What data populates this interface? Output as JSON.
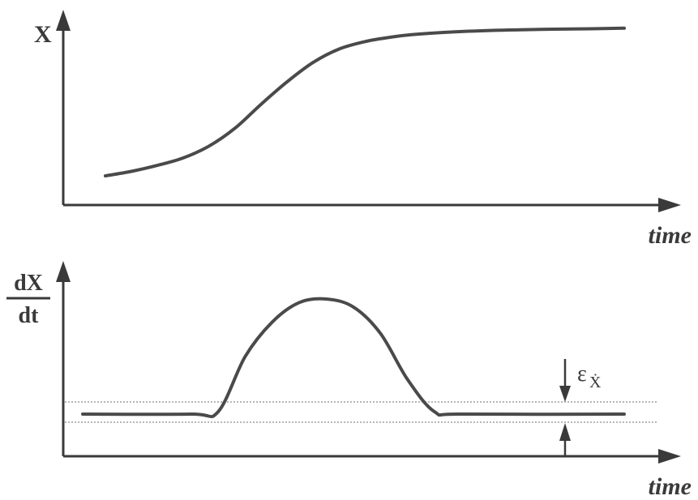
{
  "chart_data": [
    {
      "type": "line",
      "title": "",
      "ylabel": "X",
      "xlabel": "time",
      "series": [
        {
          "values": [
            [
              0.0,
              0.0
            ],
            [
              0.05,
              0.03
            ],
            [
              0.1,
              0.07
            ],
            [
              0.15,
              0.12
            ],
            [
              0.2,
              0.2
            ],
            [
              0.25,
              0.32
            ],
            [
              0.3,
              0.48
            ],
            [
              0.35,
              0.63
            ],
            [
              0.4,
              0.76
            ],
            [
              0.45,
              0.85
            ],
            [
              0.5,
              0.9
            ],
            [
              0.55,
              0.93
            ],
            [
              0.6,
              0.95
            ],
            [
              0.7,
              0.97
            ],
            [
              0.8,
              0.98
            ],
            [
              0.9,
              0.985
            ],
            [
              1.0,
              0.99
            ]
          ]
        }
      ]
    },
    {
      "type": "line",
      "title": "",
      "ylabel": {
        "numerator": "dX",
        "denominator": "dt"
      },
      "xlabel": "time",
      "series": [
        {
          "values": [
            [
              0.0,
              0.0
            ],
            [
              0.2,
              0.0
            ],
            [
              0.25,
              0.02
            ],
            [
              0.3,
              0.5
            ],
            [
              0.35,
              0.8
            ],
            [
              0.4,
              0.97
            ],
            [
              0.45,
              1.0
            ],
            [
              0.5,
              0.93
            ],
            [
              0.55,
              0.7
            ],
            [
              0.6,
              0.3
            ],
            [
              0.65,
              0.02
            ],
            [
              0.7,
              0.0
            ],
            [
              1.0,
              0.0
            ]
          ]
        }
      ],
      "annotation": {
        "label": "ε",
        "subscript": "Ẋ",
        "band": [
          -0.1,
          0.1
        ]
      }
    }
  ]
}
